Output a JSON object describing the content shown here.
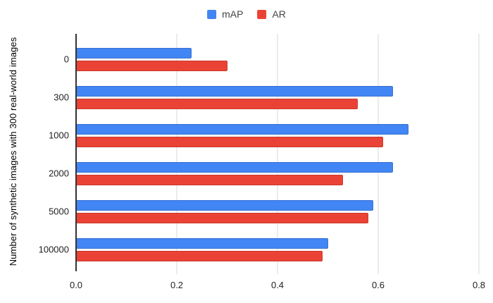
{
  "chart_data": {
    "type": "bar",
    "orientation": "horizontal",
    "title": "",
    "xlabel": "",
    "ylabel": "Number of synthetic images with 300 real-world images",
    "categories": [
      "0",
      "300",
      "1000",
      "2000",
      "5000",
      "100000"
    ],
    "series": [
      {
        "name": "mAP",
        "color": "#4285f4",
        "values": [
          0.23,
          0.63,
          0.66,
          0.63,
          0.59,
          0.5
        ]
      },
      {
        "name": "AR",
        "color": "#ea4335",
        "values": [
          0.3,
          0.56,
          0.61,
          0.53,
          0.58,
          0.49
        ]
      }
    ],
    "xlim": [
      0,
      0.8
    ],
    "x_ticks": [
      "0.0",
      "0.2",
      "0.4",
      "0.6",
      "0.8"
    ],
    "grid": true,
    "legend_position": "top",
    "axis_color": "#333333",
    "gridline_color": "#d9d9d9"
  }
}
